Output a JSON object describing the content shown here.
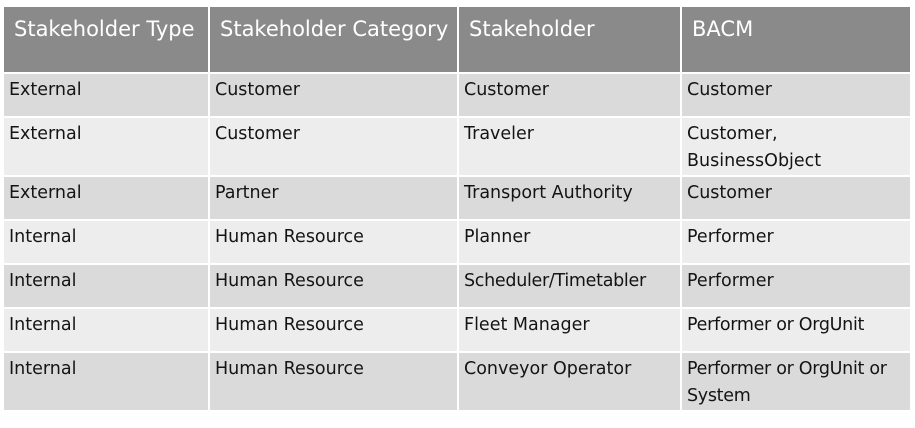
{
  "table": {
    "headers": [
      "Stakeholder Type",
      "Stakeholder Category",
      "Stakeholder",
      "BACM"
    ],
    "rows": [
      [
        "External",
        "Customer",
        "Customer",
        "Customer"
      ],
      [
        "External",
        "Customer",
        "Traveler",
        "Customer, BusinessObject"
      ],
      [
        "External",
        "Partner",
        "Transport Authority",
        "Customer"
      ],
      [
        "Internal",
        "Human Resource",
        "Planner",
        "Performer"
      ],
      [
        "Internal",
        "Human Resource",
        "Scheduler/Timetabler",
        "Performer"
      ],
      [
        "Internal",
        "Human Resource",
        "Fleet Manager",
        "Performer or OrgUnit"
      ],
      [
        "Internal",
        "Human Resource",
        "Conveyor Operator",
        "Performer or OrgUnit or System"
      ]
    ]
  }
}
